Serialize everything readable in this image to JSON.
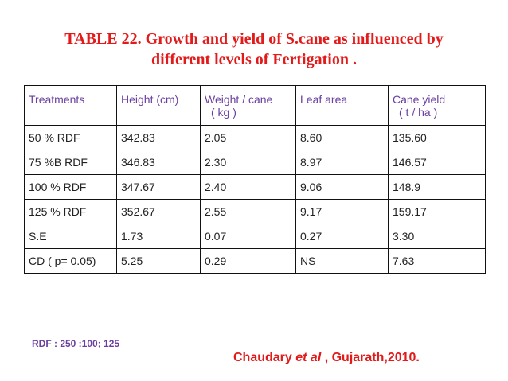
{
  "title": {
    "line1": "TABLE 22. Growth and yield of S.cane as influenced by",
    "line2": "different levels of Fertigation ."
  },
  "table": {
    "headers": [
      {
        "line1": "Treatments",
        "line2": ""
      },
      {
        "line1": "Height (cm)",
        "line2": ""
      },
      {
        "line1": "Weight / cane",
        "line2": "( kg )"
      },
      {
        "line1": "Leaf area",
        "line2": ""
      },
      {
        "line1": "Cane yield",
        "line2": "( t / ha )"
      }
    ],
    "rows": [
      [
        "50 % RDF",
        "342.83",
        "2.05",
        "8.60",
        "135.60"
      ],
      [
        "75 %B RDF",
        "346.83",
        "2.30",
        "8.97",
        "146.57"
      ],
      [
        "100 % RDF",
        "347.67",
        "2.40",
        "9.06",
        "148.9"
      ],
      [
        "125 % RDF",
        "352.67",
        "2.55",
        "9.17",
        "159.17"
      ],
      [
        "S.E",
        "1.73",
        "0.07",
        "0.27",
        "3.30"
      ],
      [
        "CD ( p= 0.05)",
        "5.25",
        "0.29",
        "NS",
        "7.63"
      ]
    ]
  },
  "footnote": "RDF : 250 :100; 125",
  "citation": {
    "author": "Chaudary ",
    "etal": "et al",
    "rest": " , Gujarath,2010."
  }
}
